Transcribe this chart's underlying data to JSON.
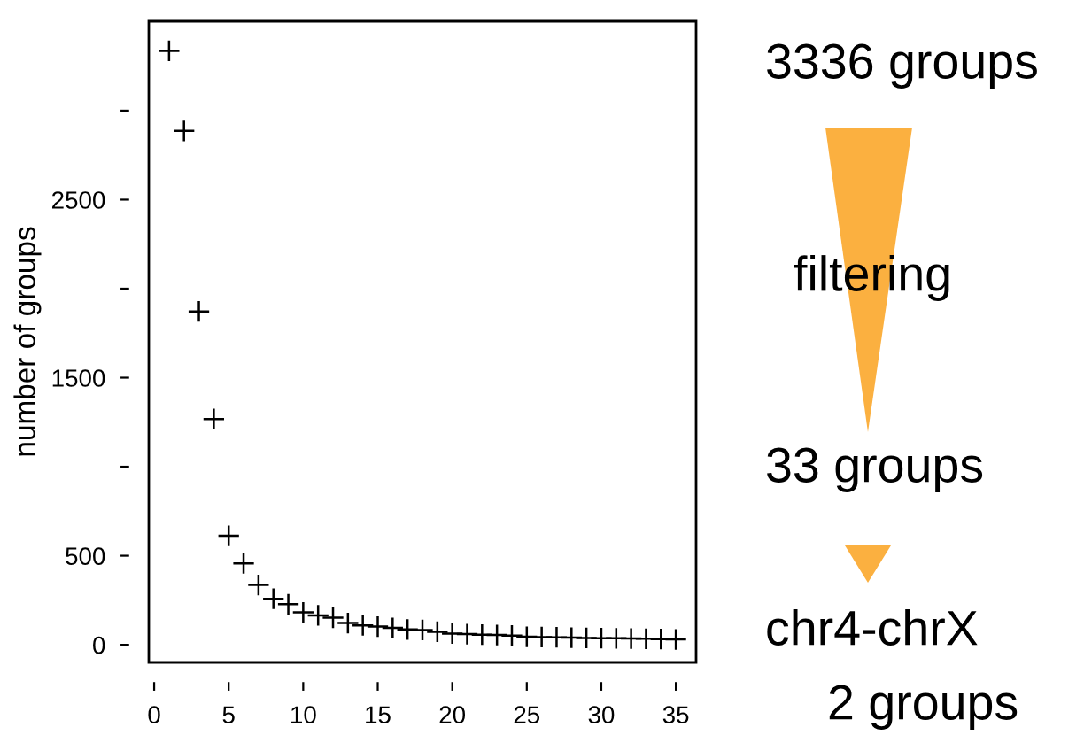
{
  "chart_data": {
    "type": "scatter",
    "ylabel": "number of groups",
    "x": [
      1,
      2,
      3,
      4,
      5,
      6,
      7,
      8,
      9,
      10,
      11,
      12,
      13,
      14,
      15,
      16,
      17,
      18,
      19,
      20,
      21,
      22,
      23,
      24,
      25,
      26,
      27,
      28,
      29,
      30,
      31,
      32,
      33,
      34,
      35
    ],
    "values": [
      3336,
      2886,
      1872,
      1268,
      612,
      457,
      336,
      258,
      228,
      182,
      165,
      152,
      122,
      109,
      102,
      95,
      86,
      83,
      73,
      63,
      60,
      57,
      55,
      52,
      45,
      43,
      42,
      40,
      38,
      37,
      36,
      35,
      34,
      32,
      30
    ],
    "color": "#000000",
    "marker": "cross",
    "xlim": [
      -0.36,
      36.36
    ],
    "ylim": [
      -99,
      3502
    ],
    "xticks": [
      0,
      5,
      10,
      15,
      20,
      25,
      30,
      35
    ],
    "yticks": [
      0,
      500,
      {
        "value": 1000,
        "label": null
      },
      1500,
      {
        "value": 2000,
        "label": null
      },
      2500,
      {
        "value": 3000,
        "label": null
      }
    ],
    "grid": false,
    "legend": false,
    "annotations": [
      "3336 groups",
      "filtering",
      "33 groups",
      "chr4-chrX",
      "2 groups"
    ]
  }
}
